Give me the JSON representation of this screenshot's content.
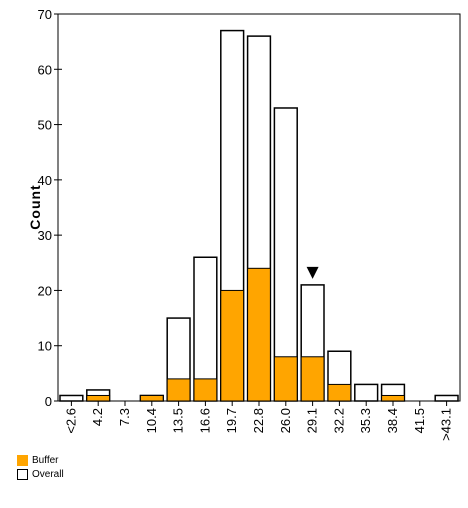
{
  "chart_data": {
    "type": "bar",
    "stacked_overlay": true,
    "ylabel": "Count",
    "xlabel": "",
    "ylim": [
      0,
      70
    ],
    "yticks": [
      0,
      10,
      20,
      30,
      40,
      50,
      60,
      70
    ],
    "categories": [
      "<2.6",
      "4.2",
      "7.3",
      "10.4",
      "13.5",
      "16.6",
      "19.7",
      "22.8",
      "26.0",
      "29.1",
      "32.2",
      "35.3",
      "38.4",
      "41.5",
      ">43.1"
    ],
    "series": [
      {
        "name": "Buffer",
        "color": "#FFA500",
        "values": [
          0,
          1,
          0,
          1,
          4,
          4,
          20,
          24,
          8,
          8,
          3,
          0,
          1,
          0,
          0
        ]
      },
      {
        "name": "Overall",
        "color": "#FFFFFF",
        "values": [
          1,
          2,
          0,
          1,
          15,
          26,
          67,
          66,
          53,
          21,
          9,
          3,
          3,
          0,
          1
        ]
      }
    ],
    "marker": {
      "category": "29.1",
      "symbol": "down-triangle"
    },
    "legend": "bottom-left",
    "grid": false
  }
}
